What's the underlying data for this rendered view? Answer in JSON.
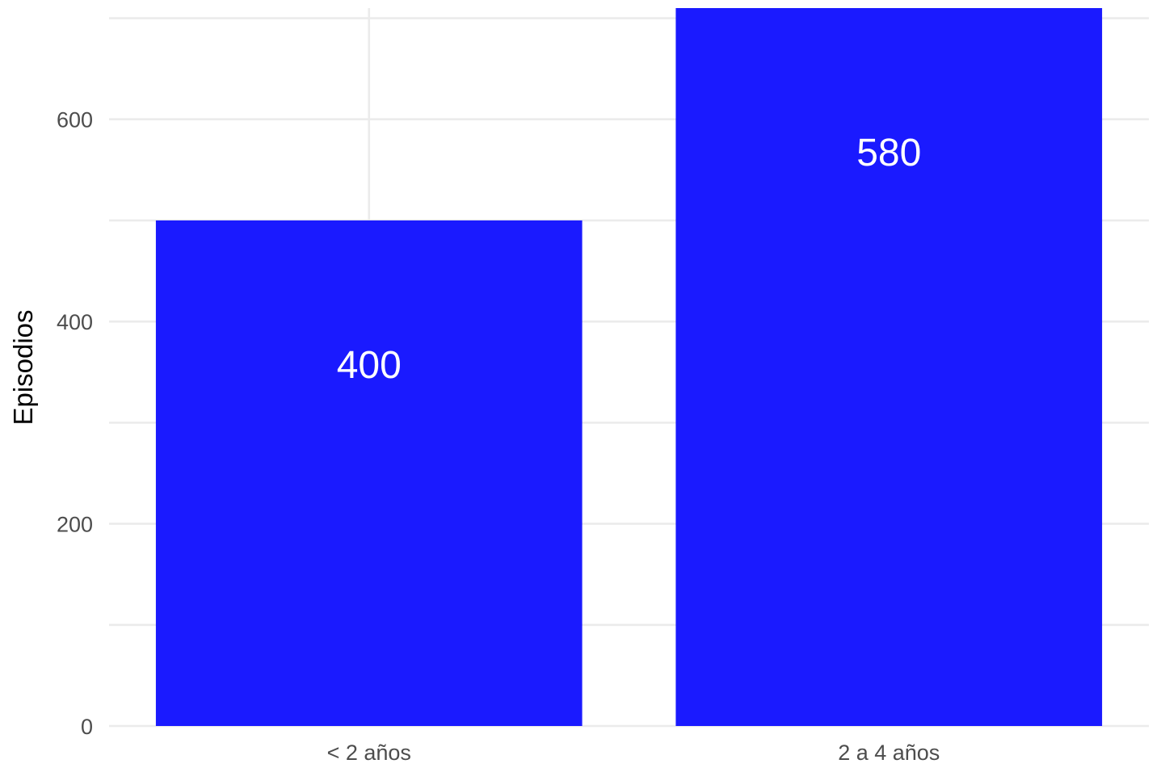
{
  "chart_data": {
    "type": "bar",
    "categories": [
      "< 2 años",
      "2 a 4 años"
    ],
    "values": [
      400,
      580
    ],
    "data_labels": [
      "400",
      "580"
    ],
    "bar_heights_displayed": [
      500,
      710
    ],
    "title": "",
    "xlabel": "",
    "ylabel": "Episodios",
    "ylim": [
      0,
      710
    ],
    "yticks": [
      0,
      200,
      400,
      600
    ],
    "grid": true,
    "legend": "none",
    "bar_color": "#1a1aff"
  }
}
